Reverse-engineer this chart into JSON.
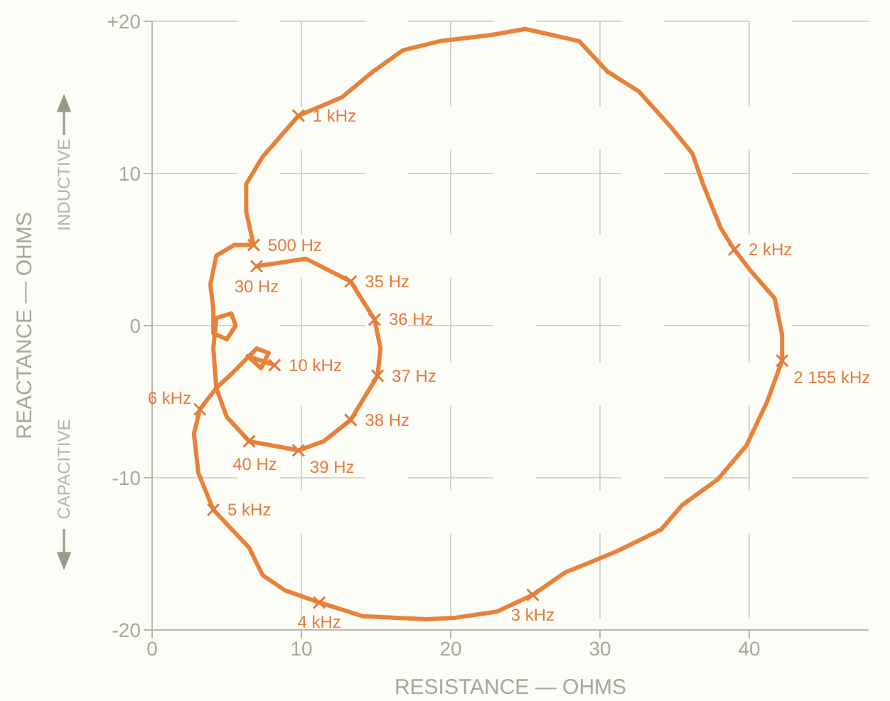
{
  "chart_data": {
    "type": "line",
    "xlabel": "RESISTANCE — OHMS",
    "ylabel": "REACTANCE — OHMS",
    "x": [
      7.0,
      10.3,
      13.3,
      14.9,
      15.3,
      15.1,
      13.3,
      11.5,
      9.8,
      6.5,
      5.0,
      4.3,
      4.1,
      4.3,
      5.3,
      5.6,
      5.0,
      4.1,
      4.1,
      3.9,
      4.3,
      5.5,
      6.8,
      6.3,
      6.3,
      7.4,
      8.3,
      9.8,
      12.7,
      14.8,
      16.8,
      19.3,
      22.7,
      25.0,
      28.6,
      30.5,
      32.6,
      34.8,
      36.2,
      36.9,
      38.1,
      39.0,
      40.1,
      41.7,
      42.2,
      42.2,
      41.2,
      39.8,
      37.9,
      35.5,
      34.1,
      31.2,
      29.0,
      27.7,
      25.5,
      23.1,
      20.3,
      18.4,
      14.1,
      11.2,
      8.9,
      7.4,
      6.5,
      4.1,
      3.1,
      2.8,
      3.2,
      4.3,
      5.5,
      7.0,
      7.8,
      7.3,
      6.4,
      7.6,
      8.2
    ],
    "series": [
      {
        "color": "#e8823a",
        "values": [
          3.9,
          4.4,
          2.9,
          0.4,
          -1.5,
          -3.3,
          -6.2,
          -7.6,
          -8.2,
          -7.6,
          -6.0,
          -4.1,
          -1.5,
          0.5,
          0.8,
          0,
          -0.9,
          -0.5,
          1.1,
          2.7,
          4.6,
          5.3,
          5.3,
          7.5,
          9.3,
          11.1,
          12.1,
          13.8,
          15.0,
          16.7,
          18.1,
          18.7,
          19.1,
          19.5,
          18.7,
          16.7,
          15.4,
          13.0,
          11.3,
          9.3,
          6.4,
          5.0,
          3.6,
          1.8,
          -0.6,
          -2.3,
          -5.0,
          -7.9,
          -10.1,
          -11.8,
          -13.4,
          -14.8,
          -15.7,
          -16.2,
          -17.7,
          -18.8,
          -19.2,
          -19.3,
          -19.1,
          -18.2,
          -17.4,
          -16.4,
          -14.6,
          -12.1,
          -9.7,
          -7.1,
          -5.5,
          -4.1,
          -3.0,
          -1.5,
          -1.8,
          -2.8,
          -2.0,
          -2.4,
          -2.6
        ]
      }
    ],
    "xlim": [
      0,
      48
    ],
    "xticks": [
      0,
      10,
      20,
      30,
      40
    ],
    "ylim": [
      -20,
      20
    ],
    "yticks": [
      {
        "value": 20,
        "label": "+20"
      },
      10,
      0,
      -10,
      -20
    ],
    "grid": true,
    "marker": "none",
    "line_style": "solid",
    "annotations": [
      "INDUCTIVE",
      "CAPACITIVE",
      {
        "text": "30 Hz",
        "x": 7.0,
        "y": 3.9
      },
      {
        "text": "35 Hz",
        "x": 13.3,
        "y": 2.9
      },
      {
        "text": "36 Hz",
        "x": 14.9,
        "y": 0.4
      },
      {
        "text": "37 Hz",
        "x": 15.1,
        "y": -3.3
      },
      {
        "text": "38 Hz",
        "x": 13.3,
        "y": -6.2
      },
      {
        "text": "39 Hz",
        "x": 9.8,
        "y": -8.2
      },
      {
        "text": "40 Hz",
        "x": 6.5,
        "y": -7.6
      },
      {
        "text": "500 Hz",
        "x": 6.8,
        "y": 5.3
      },
      {
        "text": "1 kHz",
        "x": 9.8,
        "y": 13.8
      },
      {
        "text": "2 kHz",
        "x": 39.0,
        "y": 5.0
      },
      {
        "text": "2 155 kHz",
        "x": 42.2,
        "y": -2.3
      },
      {
        "text": "3 kHz",
        "x": 25.5,
        "y": -17.7
      },
      {
        "text": "4 kHz",
        "x": 11.2,
        "y": -18.2
      },
      {
        "text": "5 kHz",
        "x": 4.1,
        "y": -12.1
      },
      {
        "text": "6 kHz",
        "x": 3.2,
        "y": -5.5
      },
      {
        "text": "10 kHz",
        "x": 8.2,
        "y": -2.6
      }
    ]
  }
}
